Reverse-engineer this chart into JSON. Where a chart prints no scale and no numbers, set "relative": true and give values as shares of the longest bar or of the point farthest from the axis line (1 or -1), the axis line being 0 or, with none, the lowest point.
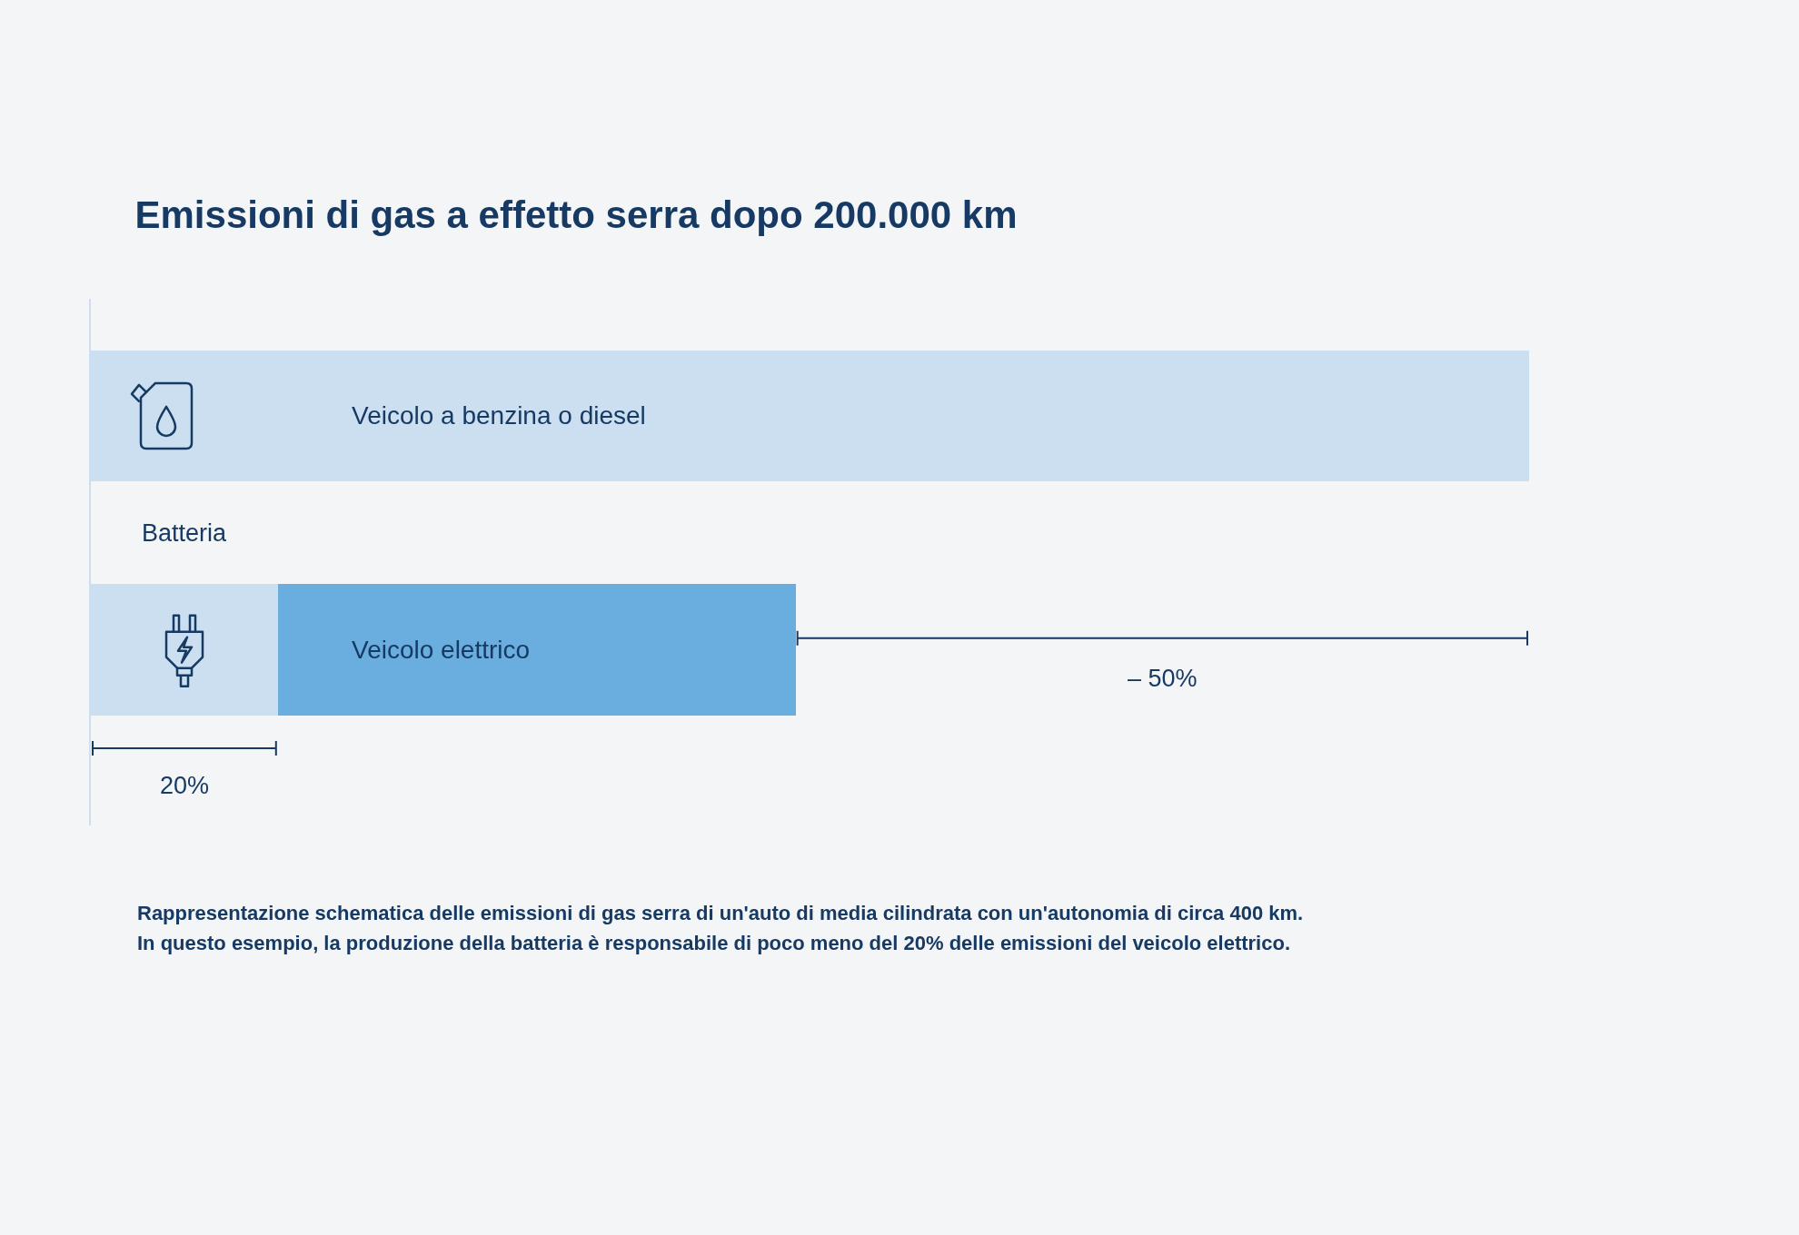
{
  "chart_data": {
    "type": "bar",
    "title": "Emissioni di gas a effetto serra dopo 200.000 km",
    "orientation": "horizontal",
    "stacked": true,
    "relative": true,
    "legend": false,
    "categories": [
      "Veicolo a benzina o diesel",
      "Veicolo elettrico"
    ],
    "series": [
      {
        "color": "#cbdff0",
        "values": [
          1,
          null
        ]
      },
      {
        "name": "Batteria",
        "color": "#cbdff0",
        "values": [
          null,
          0.13
        ]
      },
      {
        "color": "#6aaee0",
        "values": [
          null,
          0.36
        ]
      }
    ],
    "annotations": [
      "20%",
      "– 50%",
      "Rappresentazione schematica delle emissioni di gas serra di un'auto di media cilindrata con un'autonomia di circa 400 km.",
      "In questo esempio, la produzione della batteria è responsabile di poco meno del 20% delle emissioni del veicolo elettrico."
    ]
  }
}
